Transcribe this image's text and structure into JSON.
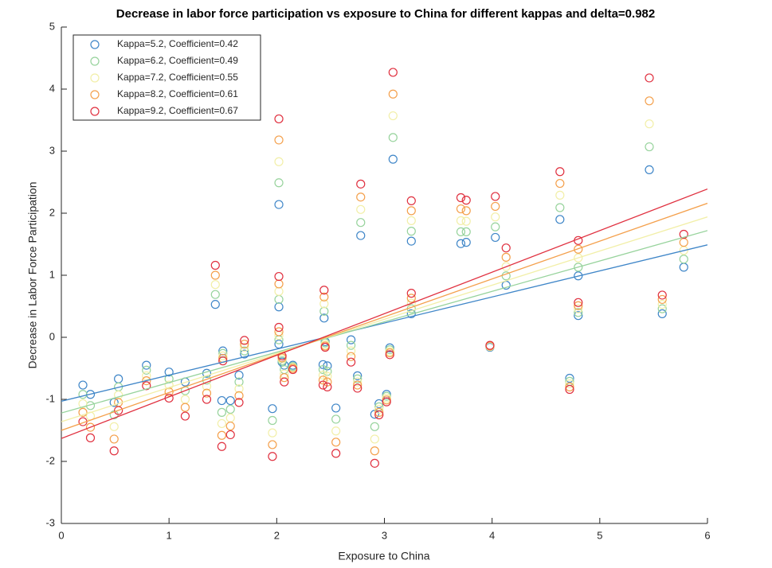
{
  "chart_data": {
    "type": "scatter",
    "title": "Decrease in labor force participation vs exposure to China for different kappas and delta=0.982",
    "x_label": "Exposure to China",
    "y_label": "Decrease in Labor Force Participation",
    "xlim": [
      0,
      6
    ],
    "ylim": [
      -3,
      5
    ],
    "xticks": [
      0,
      1,
      2,
      3,
      4,
      5,
      6
    ],
    "yticks": [
      -3,
      -2,
      -1,
      0,
      1,
      2,
      3,
      4,
      5
    ],
    "legend_location": "northwest",
    "x": [
      0.2,
      0.27,
      0.49,
      0.53,
      0.79,
      1.0,
      1.15,
      1.35,
      1.43,
      1.49,
      1.5,
      1.57,
      1.65,
      1.7,
      1.96,
      2.02,
      2.02,
      2.02,
      2.05,
      2.07,
      2.15,
      2.43,
      2.44,
      2.45,
      2.47,
      2.55,
      2.69,
      2.75,
      2.78,
      2.91,
      2.95,
      3.02,
      3.05,
      3.08,
      3.25,
      3.25,
      3.71,
      3.76,
      3.98,
      4.03,
      4.13,
      4.63,
      4.72,
      4.8,
      4.8,
      5.46,
      5.58,
      5.78
    ],
    "series": [
      {
        "name": "Kappa=5.2, Coefficient=0.42",
        "color": "#3f86c8",
        "fit_intercept": -1.03,
        "fit_slope": 0.42,
        "values": [
          -0.77,
          -0.92,
          -1.05,
          -0.67,
          -0.45,
          -0.56,
          -0.72,
          -0.58,
          0.53,
          -1.02,
          -0.22,
          -1.02,
          -0.61,
          -0.27,
          -1.15,
          2.14,
          0.49,
          -0.11,
          -0.4,
          -0.45,
          -0.45,
          -0.44,
          0.31,
          -0.07,
          -0.46,
          -1.14,
          -0.04,
          -0.62,
          1.64,
          -1.24,
          -1.07,
          -0.92,
          -0.17,
          2.87,
          1.55,
          0.38,
          1.51,
          1.53,
          -0.16,
          1.61,
          0.84,
          1.9,
          -0.66,
          0.99,
          0.35,
          2.7,
          0.38,
          1.13
        ]
      },
      {
        "name": "Kappa=6.2, Coefficient=0.49",
        "color": "#97d39c",
        "fit_intercept": -1.22,
        "fit_slope": 0.49,
        "values": [
          -0.92,
          -1.1,
          -1.25,
          -0.8,
          -0.53,
          -0.67,
          -0.86,
          -0.69,
          0.69,
          -1.21,
          -0.26,
          -1.16,
          -0.72,
          -0.22,
          -1.34,
          2.49,
          0.61,
          -0.04,
          -0.38,
          -0.52,
          -0.47,
          -0.52,
          0.42,
          -0.09,
          -0.55,
          -1.32,
          -0.13,
          -0.67,
          1.85,
          -1.44,
          -1.12,
          -0.95,
          -0.2,
          3.22,
          1.71,
          0.46,
          1.7,
          1.7,
          -0.15,
          1.78,
          0.99,
          2.09,
          -0.71,
          1.13,
          0.4,
          3.07,
          0.46,
          1.26
        ]
      },
      {
        "name": "Kappa=7.2, Coefficient=0.55",
        "color": "#f2efa8",
        "fit_intercept": -1.36,
        "fit_slope": 0.55,
        "values": [
          -1.07,
          -1.27,
          -1.44,
          -0.93,
          -0.62,
          -0.77,
          -1.0,
          -0.79,
          0.85,
          -1.39,
          -0.3,
          -1.3,
          -0.83,
          -0.16,
          -1.54,
          2.83,
          0.74,
          0.03,
          -0.35,
          -0.59,
          -0.49,
          -0.61,
          0.54,
          -0.12,
          -0.63,
          -1.51,
          -0.22,
          -0.72,
          2.06,
          -1.64,
          -1.16,
          -0.98,
          -0.23,
          3.57,
          1.88,
          0.55,
          1.88,
          1.87,
          -0.15,
          1.94,
          1.14,
          2.29,
          -0.75,
          1.28,
          0.46,
          3.44,
          0.53,
          1.4
        ]
      },
      {
        "name": "Kappa=8.2, Coefficient=0.61",
        "color": "#f4a04c",
        "fit_intercept": -1.5,
        "fit_slope": 0.61,
        "values": [
          -1.21,
          -1.45,
          -1.64,
          -1.05,
          -0.7,
          -0.88,
          -1.13,
          -0.9,
          1.0,
          -1.58,
          -0.34,
          -1.43,
          -0.94,
          -0.11,
          -1.73,
          3.18,
          0.86,
          0.09,
          -0.33,
          -0.65,
          -0.5,
          -0.69,
          0.65,
          -0.14,
          -0.72,
          -1.69,
          -0.31,
          -0.77,
          2.26,
          -1.83,
          -1.21,
          -1.01,
          -0.25,
          3.92,
          2.04,
          0.63,
          2.07,
          2.04,
          -0.14,
          2.11,
          1.29,
          2.48,
          -0.8,
          1.42,
          0.51,
          3.81,
          0.61,
          1.53
        ]
      },
      {
        "name": "Kappa=9.2, Coefficient=0.67",
        "color": "#e0303f",
        "fit_intercept": -1.63,
        "fit_slope": 0.67,
        "values": [
          -1.36,
          -1.62,
          -1.83,
          -1.18,
          -0.78,
          -0.98,
          -1.27,
          -1.0,
          1.16,
          -1.76,
          -0.38,
          -1.57,
          -1.05,
          -0.05,
          -1.92,
          3.52,
          0.98,
          0.16,
          -0.3,
          -0.72,
          -0.52,
          -0.77,
          0.76,
          -0.16,
          -0.8,
          -1.87,
          -0.4,
          -0.82,
          2.47,
          -2.03,
          -1.25,
          -1.04,
          -0.28,
          4.27,
          2.2,
          0.71,
          2.25,
          2.21,
          -0.13,
          2.27,
          1.44,
          2.67,
          -0.84,
          1.56,
          0.56,
          4.18,
          0.68,
          1.66
        ]
      }
    ]
  }
}
